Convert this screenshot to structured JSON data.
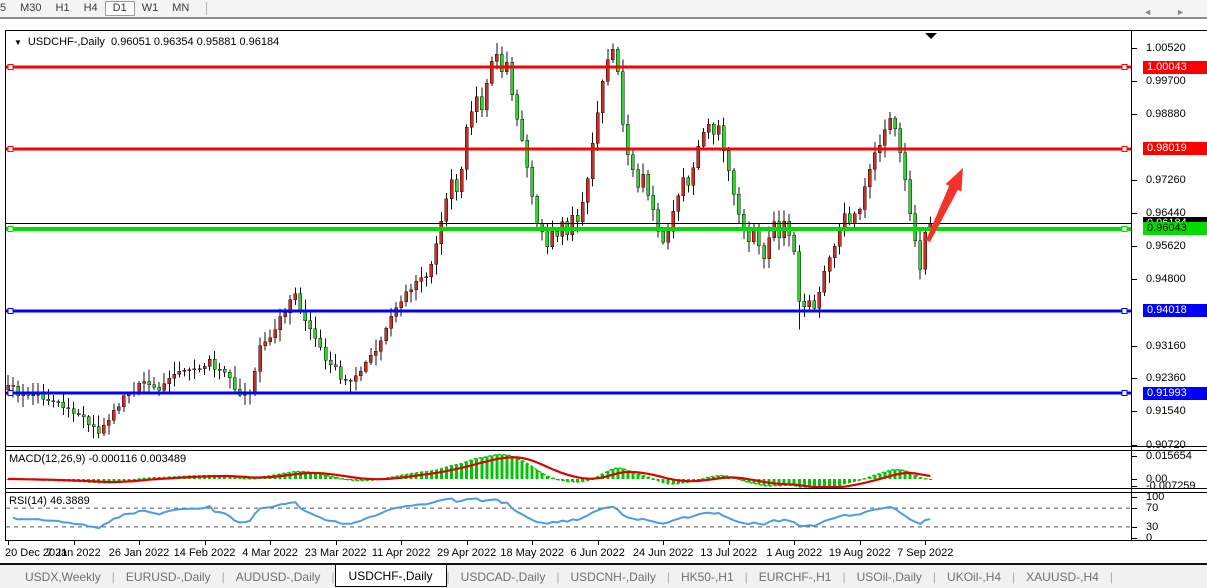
{
  "toolbar": {
    "timeframes": [
      {
        "label": "5",
        "active": false
      },
      {
        "label": "M30",
        "active": false
      },
      {
        "label": "H1",
        "active": false
      },
      {
        "label": "H4",
        "active": false
      },
      {
        "label": "D1",
        "active": true
      },
      {
        "label": "W1",
        "active": false
      },
      {
        "label": "MN",
        "active": false
      }
    ]
  },
  "chart": {
    "dropdown_icon": "▼",
    "title_symbol": "USDCHF-,Daily",
    "ohlc_text": "0.96051 0.96354 0.95881 0.96184",
    "shift_marker_icon": "▼"
  },
  "indicators": {
    "macd_label": "MACD(12,26,9) -0.000116 0.003489",
    "rsi_label": "RSI(14) 46.3889"
  },
  "axes": {
    "price_ticks": [
      "1.00520",
      "0.99700",
      "0.98880",
      "0.97260",
      "0.96440",
      "0.95620",
      "0.94800",
      "0.93160",
      "0.92360",
      "0.91540",
      "0.90720"
    ],
    "macd_ticks": [
      "0.015654",
      "0.00",
      "-0.007259"
    ],
    "rsi_ticks": [
      "100",
      "70",
      "30",
      "0"
    ],
    "dates": [
      "20 Dec 2021",
      "7 Jan 2022",
      "26 Jan 2022",
      "14 Feb 2022",
      "4 Mar 2022",
      "23 Mar 2022",
      "11 Apr 2022",
      "29 Apr 2022",
      "18 May 2022",
      "6 Jun 2022",
      "24 Jun 2022",
      "13 Jul 2022",
      "1 Aug 2022",
      "19 Aug 2022",
      "7 Sep 2022"
    ]
  },
  "levels": [
    {
      "label": "1.00043",
      "price": 1.00043,
      "color": "#ff0000",
      "text_color": "#ffffff",
      "width": 3
    },
    {
      "label": "0.98019",
      "price": 0.98019,
      "color": "#ff0000",
      "text_color": "#ffffff",
      "width": 3
    },
    {
      "label": "0.96184",
      "price": 0.96184,
      "color": "#000000",
      "text_color": "#ffffff",
      "width": 1,
      "is_current_price": true
    },
    {
      "label": "0.96043",
      "price": 0.96043,
      "color": "#00dc00",
      "text_color": "#000000",
      "width": 4
    },
    {
      "label": "0.94018",
      "price": 0.94018,
      "color": "#0000ff",
      "text_color": "#ffffff",
      "width": 3
    },
    {
      "label": "0.91993",
      "price": 0.91993,
      "color": "#0000ff",
      "text_color": "#ffffff",
      "width": 3
    }
  ],
  "chart_data": {
    "type": "candlestick",
    "symbol": "USDCHF",
    "timeframe": "Daily",
    "title": "USDCHF-,Daily",
    "ohlc_current": {
      "open": 0.96051,
      "high": 0.96354,
      "low": 0.95881,
      "close": 0.96184
    },
    "support_resistance_levels": [
      1.00043,
      0.98019,
      0.96043,
      0.94018,
      0.91993
    ],
    "y_axis_range": [
      0.905,
      1.01
    ],
    "x_range_dates": [
      "20 Dec 2021",
      "13 Sep 2022"
    ],
    "up_candle_color": "#ce2b22",
    "down_candle_color": "#2dd52d",
    "close_path_anchors": [
      [
        0,
        0.922
      ],
      [
        2,
        0.92
      ],
      [
        5,
        0.919
      ],
      [
        8,
        0.9183
      ],
      [
        12,
        0.9165
      ],
      [
        16,
        0.9125
      ],
      [
        18,
        0.9108
      ],
      [
        20,
        0.9135
      ],
      [
        24,
        0.92
      ],
      [
        27,
        0.9222
      ],
      [
        30,
        0.9205
      ],
      [
        33,
        0.9242
      ],
      [
        36,
        0.9258
      ],
      [
        40,
        0.9275
      ],
      [
        43,
        0.925
      ],
      [
        46,
        0.9185
      ],
      [
        48,
        0.9198
      ],
      [
        50,
        0.931
      ],
      [
        53,
        0.936
      ],
      [
        56,
        0.9425
      ],
      [
        57,
        0.944
      ],
      [
        60,
        0.935
      ],
      [
        63,
        0.9285
      ],
      [
        66,
        0.9242
      ],
      [
        68,
        0.9225
      ],
      [
        71,
        0.9272
      ],
      [
        74,
        0.933
      ],
      [
        77,
        0.9412
      ],
      [
        79,
        0.9445
      ],
      [
        81,
        0.947
      ],
      [
        83,
        0.949
      ],
      [
        85,
        0.956
      ],
      [
        86,
        0.962
      ],
      [
        87,
        0.968
      ],
      [
        88,
        0.9725
      ],
      [
        89,
        0.97
      ],
      [
        90,
        0.976
      ],
      [
        91,
        0.985
      ],
      [
        92,
        0.9885
      ],
      [
        93,
        0.993
      ],
      [
        94,
        0.99
      ],
      [
        95,
        0.9965
      ],
      [
        96,
        1.002
      ],
      [
        97,
        1.0042
      ],
      [
        98,
        0.9985
      ],
      [
        99,
        1.0015
      ],
      [
        100,
        0.994
      ],
      [
        101,
        0.987
      ],
      [
        102,
        0.983
      ],
      [
        103,
        0.9755
      ],
      [
        104,
        0.9685
      ],
      [
        105,
        0.9625
      ],
      [
        106,
        0.9595
      ],
      [
        107,
        0.9565
      ],
      [
        108,
        0.9605
      ],
      [
        109,
        0.9585
      ],
      [
        110,
        0.9625
      ],
      [
        111,
        0.9595
      ],
      [
        112,
        0.9645
      ],
      [
        113,
        0.9615
      ],
      [
        114,
        0.9665
      ],
      [
        115,
        0.9735
      ],
      [
        116,
        0.9815
      ],
      [
        117,
        0.9895
      ],
      [
        118,
        0.9965
      ],
      [
        119,
        1.0025
      ],
      [
        120,
        1.0048
      ],
      [
        121,
        0.9985
      ],
      [
        122,
        0.9855
      ],
      [
        123,
        0.9785
      ],
      [
        124,
        0.9745
      ],
      [
        125,
        0.9705
      ],
      [
        126,
        0.9735
      ],
      [
        127,
        0.9695
      ],
      [
        128,
        0.9645
      ],
      [
        129,
        0.9605
      ],
      [
        130,
        0.9575
      ],
      [
        131,
        0.9605
      ],
      [
        132,
        0.9645
      ],
      [
        133,
        0.9685
      ],
      [
        134,
        0.9725
      ],
      [
        135,
        0.9705
      ],
      [
        136,
        0.9755
      ],
      [
        137,
        0.9805
      ],
      [
        138,
        0.9845
      ],
      [
        139,
        0.9862
      ],
      [
        140,
        0.984
      ],
      [
        141,
        0.9855
      ],
      [
        142,
        0.98
      ],
      [
        143,
        0.9745
      ],
      [
        144,
        0.969
      ],
      [
        145,
        0.9645
      ],
      [
        146,
        0.96
      ],
      [
        147,
        0.9565
      ],
      [
        148,
        0.9595
      ],
      [
        149,
        0.9565
      ],
      [
        150,
        0.9535
      ],
      [
        151,
        0.9575
      ],
      [
        152,
        0.9615
      ],
      [
        153,
        0.9585
      ],
      [
        154,
        0.9625
      ],
      [
        155,
        0.9595
      ],
      [
        156,
        0.9545
      ],
      [
        157,
        0.9435
      ],
      [
        158,
        0.9412
      ],
      [
        159,
        0.9428
      ],
      [
        160,
        0.941
      ],
      [
        161,
        0.9455
      ],
      [
        162,
        0.9495
      ],
      [
        163,
        0.9535
      ],
      [
        164,
        0.9565
      ],
      [
        165,
        0.9605
      ],
      [
        166,
        0.9635
      ],
      [
        167,
        0.9612
      ],
      [
        168,
        0.9645
      ],
      [
        169,
        0.9662
      ],
      [
        170,
        0.9705
      ],
      [
        171,
        0.9745
      ],
      [
        172,
        0.9785
      ],
      [
        173,
        0.9815
      ],
      [
        174,
        0.9848
      ],
      [
        175,
        0.9872
      ],
      [
        176,
        0.9852
      ],
      [
        177,
        0.98
      ],
      [
        178,
        0.972
      ],
      [
        179,
        0.9645
      ],
      [
        180,
        0.9575
      ],
      [
        181,
        0.9505
      ],
      [
        182,
        0.9602
      ],
      [
        183,
        0.96184
      ]
    ],
    "wick_extremes": [
      [
        97,
        "high",
        1.0063
      ],
      [
        120,
        "high",
        1.0062
      ],
      [
        157,
        "low",
        0.9356
      ],
      [
        181,
        "low",
        0.9479
      ]
    ],
    "macd": {
      "params": "12,26,9",
      "current_macd": -0.000116,
      "current_signal": 0.003489,
      "axis_max": 0.015654,
      "axis_min": -0.007259,
      "histogram_color": "#00c400",
      "macd_line_color": "#00c400",
      "signal_color": "#e00000"
    },
    "rsi": {
      "period": 14,
      "current": 46.3889,
      "levels": [
        70,
        30
      ],
      "line_color": "#4d9be6"
    },
    "annotation_arrow": {
      "from_xy": [
        928,
        241
      ],
      "to_xy": [
        963,
        168
      ],
      "color": "#f23428"
    }
  },
  "tabs": {
    "items": [
      {
        "label": "USDX,Weekly",
        "active": false
      },
      {
        "label": "EURUSD-,Daily",
        "active": false
      },
      {
        "label": "AUDUSD-,Daily",
        "active": false
      },
      {
        "label": "USDCHF-,Daily",
        "active": true
      },
      {
        "label": "USDCAD-,Daily",
        "active": false
      },
      {
        "label": "USDCNH-,Daily",
        "active": false
      },
      {
        "label": "HK50-,H1",
        "active": false
      },
      {
        "label": "EURCHF-,H1",
        "active": false
      },
      {
        "label": "USOil-,Daily",
        "active": false
      },
      {
        "label": "UKOil-,H4",
        "active": false
      },
      {
        "label": "XAUUSD-,H4",
        "active": false
      }
    ],
    "separator": "|",
    "scroll_left_icon": "◄",
    "scroll_right_icon": "►"
  }
}
